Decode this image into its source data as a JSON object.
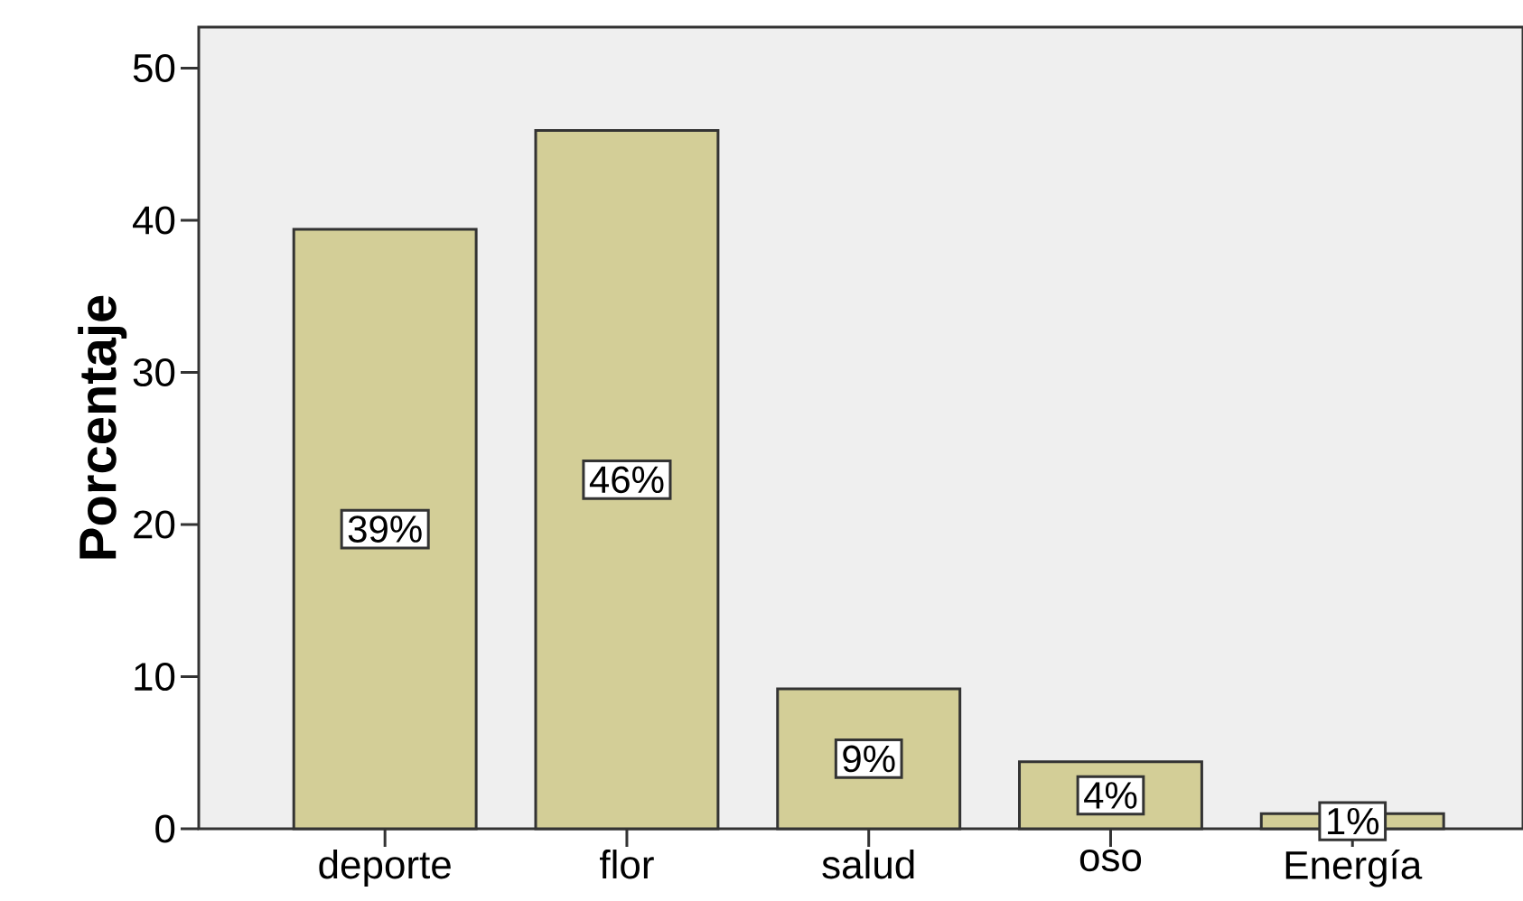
{
  "chart_data": {
    "type": "bar",
    "ylabel": "Porcentaje",
    "categories": [
      "deporte",
      "flor",
      "salud",
      "oso",
      "Energía"
    ],
    "values": [
      39.4,
      45.9,
      9.2,
      4.4,
      1.0
    ],
    "value_labels": [
      "39%",
      "46%",
      "9%",
      "4%",
      "1%"
    ],
    "color": "#d3ce97",
    "ylim": [
      0,
      52.7
    ],
    "yticks": [
      0,
      10,
      20,
      30,
      40,
      50
    ]
  }
}
